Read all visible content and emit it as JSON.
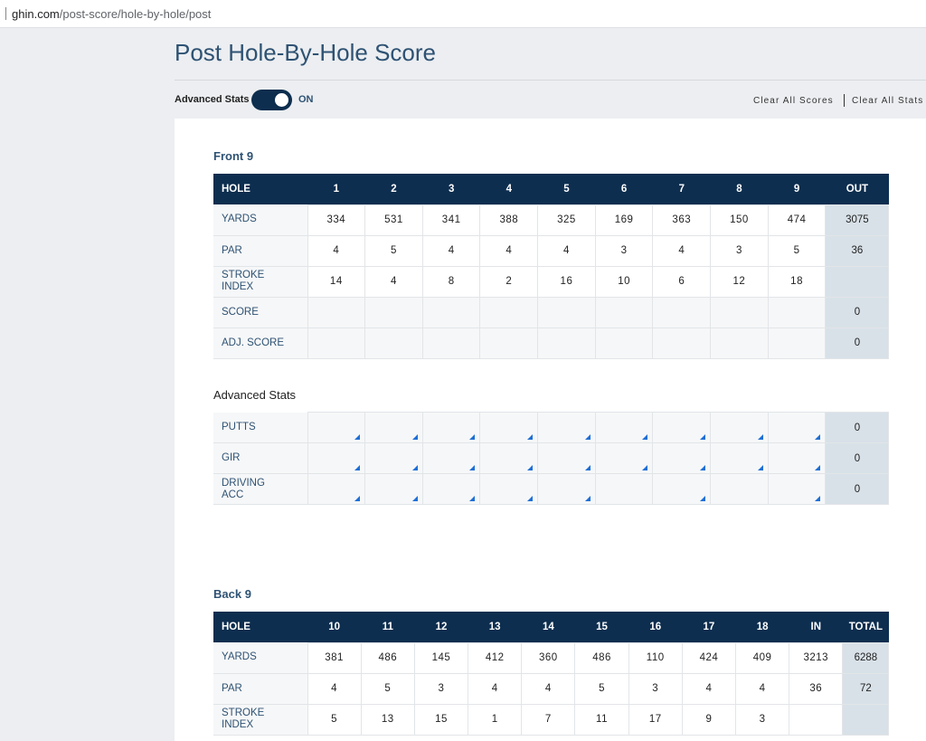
{
  "browser": {
    "url_host": "ghin.com",
    "url_path": "/post-score/hole-by-hole/post"
  },
  "page": {
    "title": "Post Hole-By-Hole Score"
  },
  "controls": {
    "advanced_stats_label": "Advanced Stats",
    "advanced_stats_state": "ON",
    "clear_all_scores": "Clear All Scores",
    "clear_all_stats": "Clear All Stats"
  },
  "front9": {
    "title": "Front 9",
    "header": {
      "hole": "HOLE",
      "total": "OUT"
    },
    "holes": [
      "1",
      "2",
      "3",
      "4",
      "5",
      "6",
      "7",
      "8",
      "9"
    ],
    "yards": {
      "label": "YARDS",
      "values": [
        "334",
        "531",
        "341",
        "388",
        "325",
        "169",
        "363",
        "150",
        "474"
      ],
      "total": "3075"
    },
    "par": {
      "label": "PAR",
      "values": [
        "4",
        "5",
        "4",
        "4",
        "4",
        "3",
        "4",
        "3",
        "5"
      ],
      "total": "36"
    },
    "stroke_index": {
      "label_line1": "STROKE",
      "label_line2": "INDEX",
      "values": [
        "14",
        "4",
        "8",
        "2",
        "16",
        "10",
        "6",
        "12",
        "18"
      ],
      "total": ""
    },
    "score": {
      "label": "SCORE",
      "total": "0"
    },
    "adj_score": {
      "label": "ADJ. SCORE",
      "total": "0"
    }
  },
  "advanced": {
    "title": "Advanced Stats",
    "putts": {
      "label": "PUTTS",
      "total": "0"
    },
    "gir": {
      "label": "GIR",
      "total": "0"
    },
    "driving": {
      "label_line1": "DRIVING",
      "label_line2": "ACC",
      "total": "0"
    }
  },
  "back9": {
    "title": "Back 9",
    "header": {
      "hole": "HOLE",
      "in": "IN",
      "total": "TOTAL"
    },
    "holes": [
      "10",
      "11",
      "12",
      "13",
      "14",
      "15",
      "16",
      "17",
      "18"
    ],
    "yards": {
      "label": "YARDS",
      "values": [
        "381",
        "486",
        "145",
        "412",
        "360",
        "486",
        "110",
        "424",
        "409"
      ],
      "in": "3213",
      "total": "6288"
    },
    "par": {
      "label": "PAR",
      "values": [
        "4",
        "5",
        "3",
        "4",
        "4",
        "5",
        "3",
        "4",
        "4"
      ],
      "in": "36",
      "total": "72"
    },
    "stroke_index": {
      "label_line1": "STROKE",
      "label_line2": "INDEX",
      "values": [
        "5",
        "13",
        "15",
        "1",
        "7",
        "11",
        "17",
        "9",
        "3"
      ],
      "in": "",
      "total": ""
    }
  },
  "colors": {
    "header_bg": "#0d2e4f",
    "accent_text": "#2e5273",
    "total_bg": "#d8e1e8",
    "corner_marker": "#1d6fd6"
  }
}
